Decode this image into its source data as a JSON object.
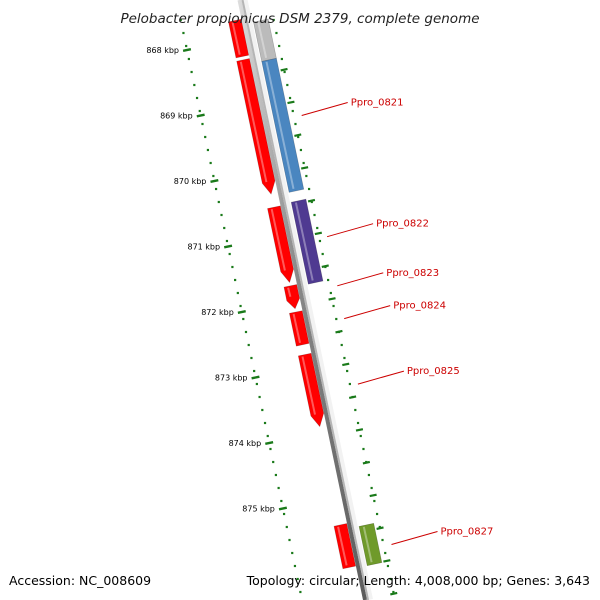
{
  "title": "Pelobacter propionicus DSM 2379, complete genome",
  "ticks": [
    {
      "label": "868 kbp",
      "kbp": 868
    },
    {
      "label": "869 kbp",
      "kbp": 869
    },
    {
      "label": "870 kbp",
      "kbp": 870
    },
    {
      "label": "871 kbp",
      "kbp": 871
    },
    {
      "label": "872 kbp",
      "kbp": 872
    },
    {
      "label": "873 kbp",
      "kbp": 873
    },
    {
      "label": "874 kbp",
      "kbp": 874
    },
    {
      "label": "875 kbp",
      "kbp": 875
    }
  ],
  "genes": [
    {
      "strand": "outer",
      "start_kbp": 867.55,
      "end_kbp": 868.1,
      "color": "#ff0000",
      "arrow": false
    },
    {
      "strand": "outer",
      "start_kbp": 868.15,
      "end_kbp": 870.2,
      "color": "#ff0000",
      "arrow": true
    },
    {
      "strand": "outer",
      "start_kbp": 870.4,
      "end_kbp": 871.55,
      "color": "#ff0000",
      "arrow": true
    },
    {
      "strand": "outer",
      "start_kbp": 871.6,
      "end_kbp": 871.95,
      "color": "#ff0000",
      "arrow": true
    },
    {
      "strand": "outer",
      "start_kbp": 872.0,
      "end_kbp": 872.5,
      "color": "#ff0000",
      "arrow": false
    },
    {
      "strand": "outer",
      "start_kbp": 872.65,
      "end_kbp": 873.75,
      "color": "#ff0000",
      "arrow": true
    },
    {
      "strand": "outer",
      "start_kbp": 875.25,
      "end_kbp": 875.9,
      "color": "#ff0000",
      "arrow": false
    },
    {
      "strand": "inner",
      "start_kbp": 867.55,
      "end_kbp": 868.15,
      "color": "#bbbbbb",
      "arrow": false
    },
    {
      "strand": "inner",
      "start_kbp": 868.15,
      "end_kbp": 870.15,
      "color": "#4a86c0",
      "arrow": false
    },
    {
      "strand": "inner",
      "start_kbp": 870.3,
      "end_kbp": 871.55,
      "color": "#4f3a91",
      "arrow": false
    },
    {
      "strand": "inner",
      "start_kbp": 875.25,
      "end_kbp": 875.85,
      "color": "#6f9a2a",
      "arrow": false
    }
  ],
  "gene_labels": [
    {
      "label": "Ppro_0821",
      "kbp": 869.0
    },
    {
      "label": "Ppro_0822",
      "kbp": 870.85
    },
    {
      "label": "Ppro_0823",
      "kbp": 871.6
    },
    {
      "label": "Ppro_0824",
      "kbp": 872.1
    },
    {
      "label": "Ppro_0825",
      "kbp": 873.1
    },
    {
      "label": "Ppro_0827",
      "kbp": 875.55
    }
  ],
  "footer": {
    "accession": "Accession: NC_008609",
    "summary": "Topology: circular; Length: 4,008,000 bp; Genes: 3,643"
  }
}
